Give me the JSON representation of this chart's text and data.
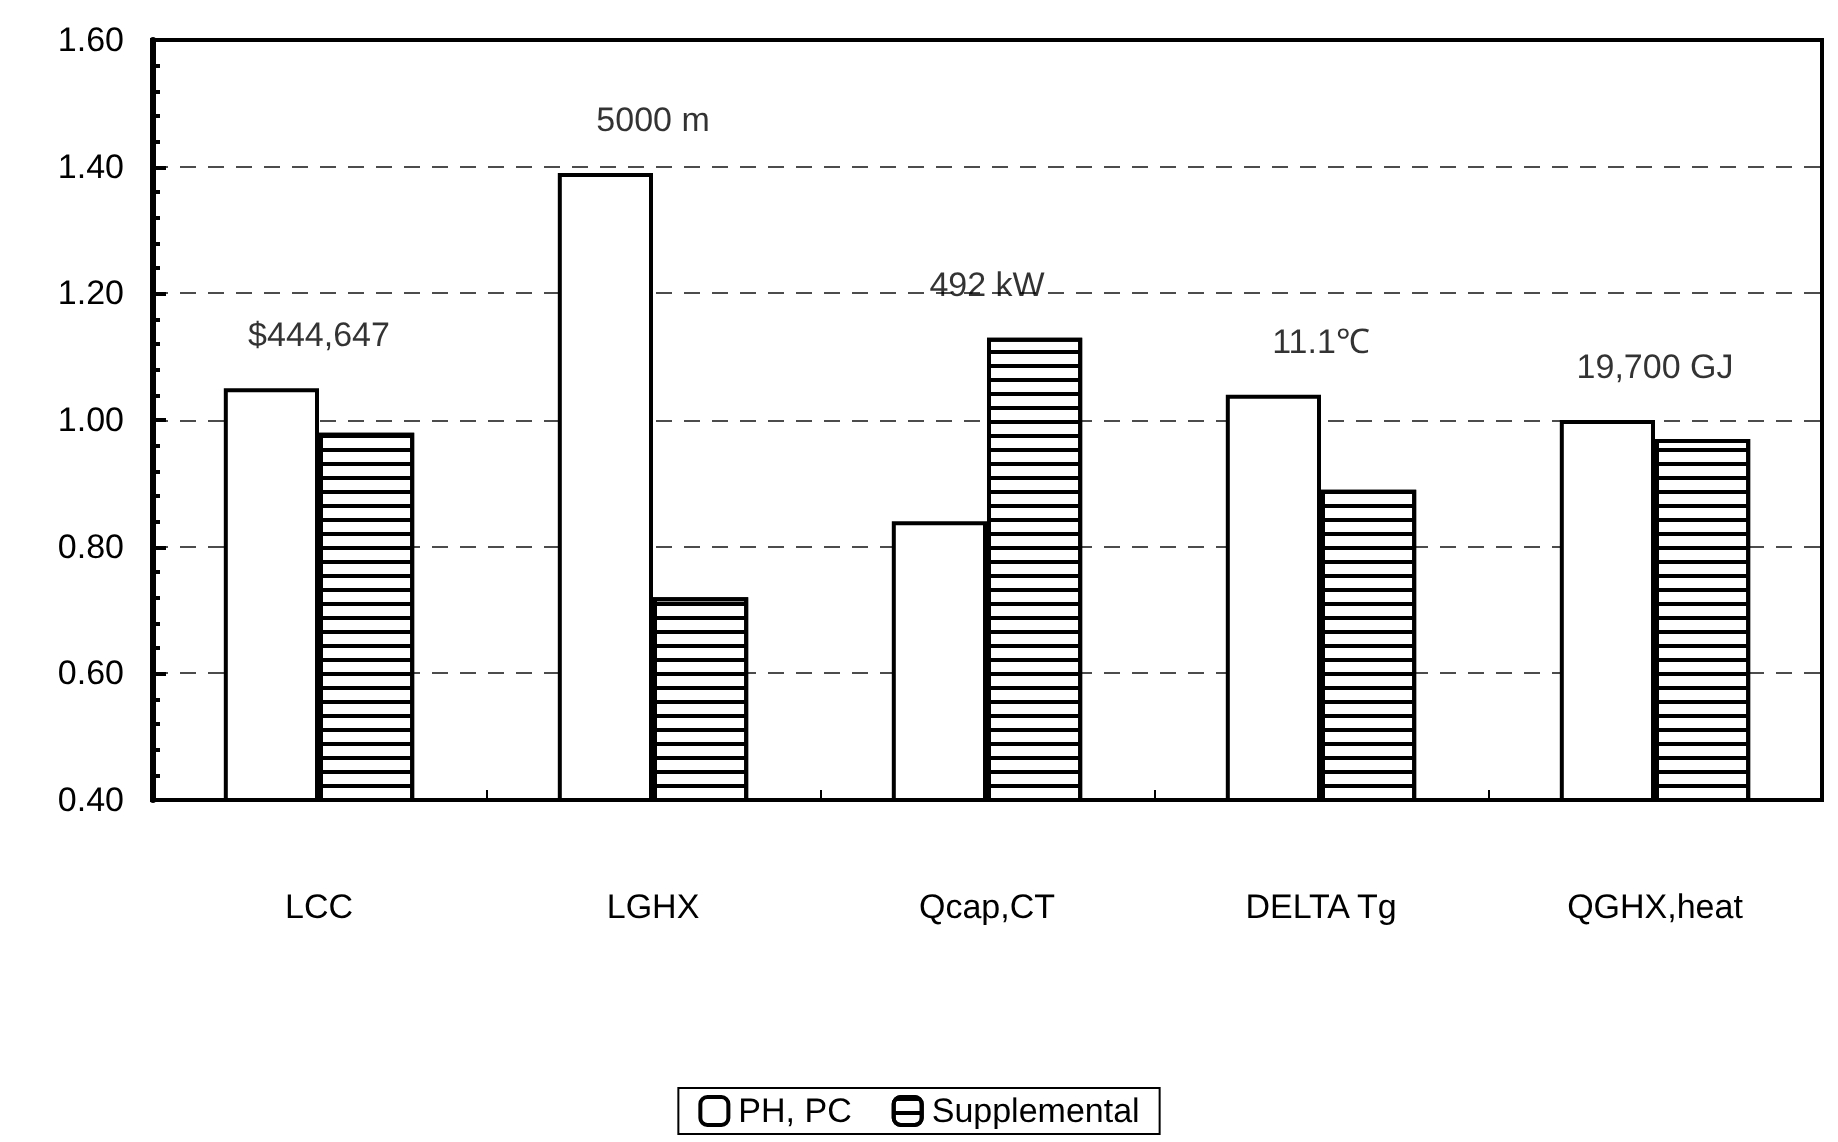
{
  "chart_data": {
    "type": "bar",
    "categories": [
      "LCC",
      "LGHX",
      "Qcap,CT",
      "DELTA Tg",
      "QGHX,heat"
    ],
    "series": [
      {
        "name": "PH, PC",
        "color": "#ffffff",
        "values": [
          1.05,
          1.39,
          0.84,
          1.04,
          1.0
        ]
      },
      {
        "name": "Supplemental",
        "color": "#000000",
        "values": [
          0.98,
          0.72,
          1.13,
          0.89,
          0.97
        ]
      }
    ],
    "ylim": [
      0.4,
      1.6
    ],
    "yticks": [
      {
        "value": 0.4,
        "label": "0.40"
      },
      {
        "value": 0.6,
        "label": "0.60"
      },
      {
        "value": 0.8,
        "label": "0.80"
      },
      {
        "value": 1.0,
        "label": "1.00"
      },
      {
        "value": 1.2,
        "label": "1.20"
      },
      {
        "value": 1.4,
        "label": "1.40"
      },
      {
        "value": 1.6,
        "label": "1.60"
      }
    ],
    "annotations": [
      "$444,647",
      "5000 m",
      "492 kW",
      "11.1℃",
      "19,700 GJ"
    ],
    "grid": "y",
    "legend": "bottom"
  }
}
